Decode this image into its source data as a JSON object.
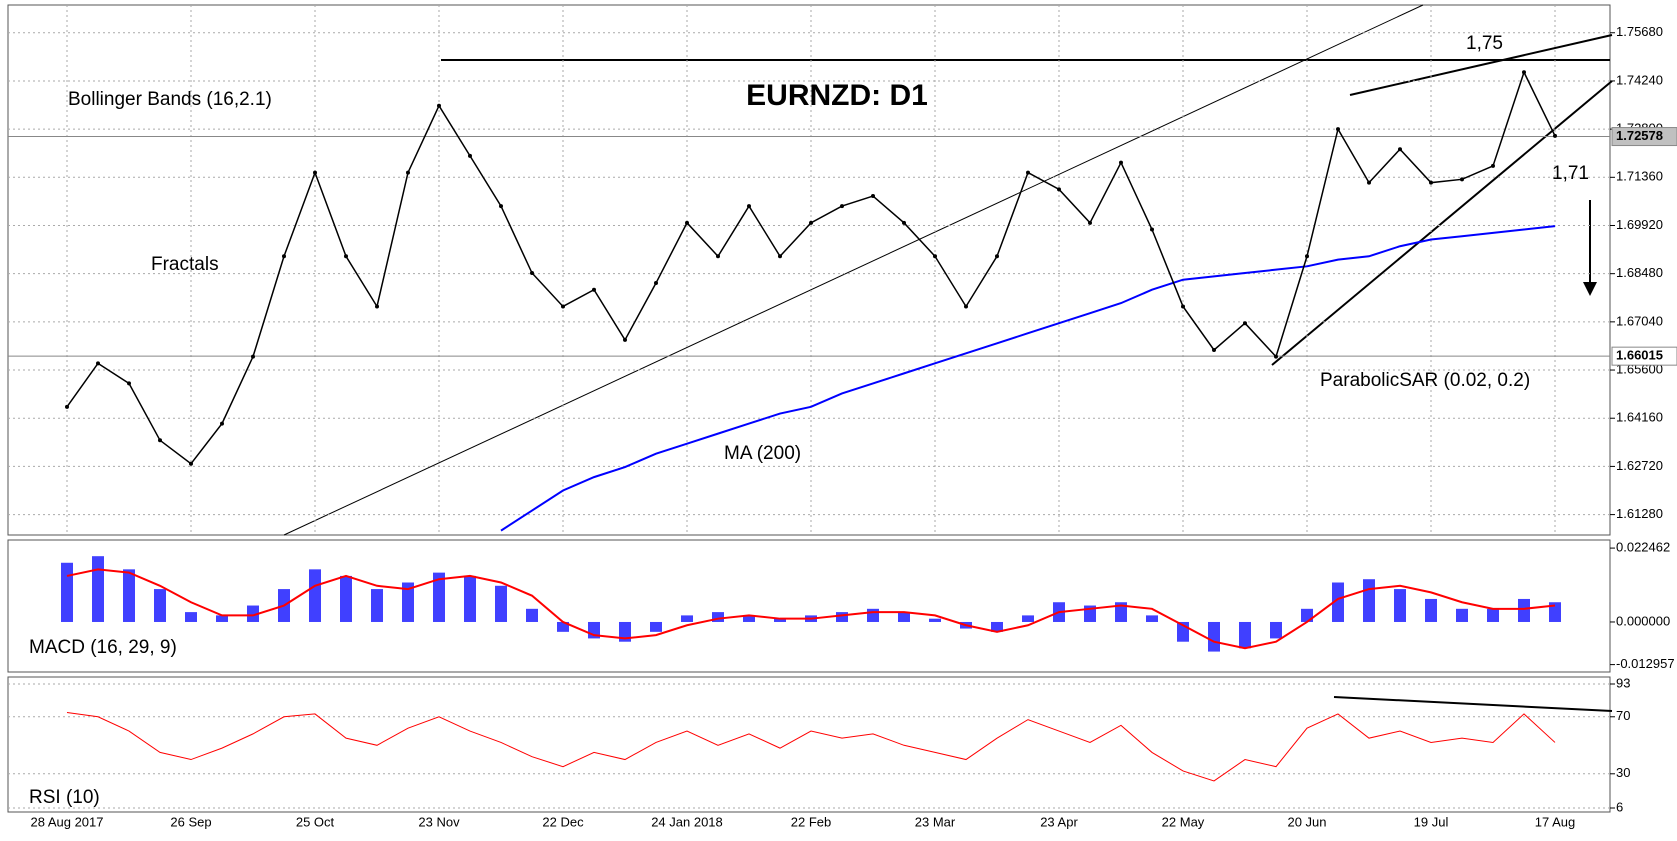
{
  "chart_data": [
    {
      "type": "line",
      "title": "EURNZD: D1",
      "annotations": [
        "Bollinger Bands (16,2.1)",
        "Fractals",
        "MA (200)",
        "ParabolicSAR (0.02, 0.2)",
        "1,75",
        "1,71"
      ],
      "categories": [
        "28 Aug 2017",
        null,
        null,
        null,
        "26 Sep",
        null,
        null,
        null,
        "25 Oct",
        null,
        null,
        null,
        "23 Nov",
        null,
        null,
        null,
        "22 Dec",
        null,
        null,
        null,
        "24 Jan 2018",
        null,
        null,
        null,
        "22 Feb",
        null,
        null,
        null,
        "23 Mar",
        null,
        null,
        null,
        "23 Apr",
        null,
        null,
        null,
        "22 May",
        null,
        null,
        null,
        "20 Jun",
        null,
        null,
        null,
        "19 Jul",
        null,
        null,
        null,
        "17 Aug"
      ],
      "values": [
        1.645,
        1.658,
        1.652,
        1.635,
        1.628,
        1.64,
        1.66,
        1.69,
        1.715,
        1.69,
        1.675,
        1.715,
        1.735,
        1.72,
        1.705,
        1.685,
        1.675,
        1.68,
        1.665,
        1.682,
        1.7,
        1.69,
        1.705,
        1.69,
        1.7,
        1.705,
        1.708,
        1.7,
        1.69,
        1.675,
        1.69,
        1.715,
        1.71,
        1.7,
        1.718,
        1.698,
        1.675,
        1.662,
        1.67,
        1.66,
        1.69,
        1.728,
        1.712,
        1.722,
        1.712,
        1.713,
        1.717,
        1.745,
        1.726
      ],
      "color": "#000000",
      "overlays": [
        {
          "name": "MA (200)",
          "color": "#0000ff",
          "values": [
            null,
            null,
            null,
            null,
            null,
            null,
            null,
            null,
            null,
            null,
            null,
            null,
            null,
            null,
            1.608,
            1.614,
            1.62,
            1.624,
            1.627,
            1.631,
            1.634,
            1.637,
            1.64,
            1.643,
            1.645,
            1.649,
            1.652,
            1.655,
            1.658,
            1.661,
            1.664,
            1.667,
            1.67,
            1.673,
            1.676,
            1.68,
            1.683,
            1.684,
            1.685,
            1.686,
            1.687,
            1.689,
            1.69,
            1.693,
            1.695,
            1.696,
            1.697,
            1.698,
            1.699
          ]
        }
      ],
      "price_lines": [
        1.72578,
        1.66015
      ],
      "ylim": [
        1.6067,
        1.7639
      ],
      "yticks": [
        {
          "value": 1.6128,
          "label": "1.61280"
        },
        {
          "value": 1.6272,
          "label": "1.62720"
        },
        {
          "value": 1.6416,
          "label": "1.64160"
        },
        {
          "value": 1.656,
          "label": "1.65600"
        },
        {
          "value": 1.6704,
          "label": "1.67040"
        },
        {
          "value": 1.6848,
          "label": "1.68480"
        },
        {
          "value": 1.6992,
          "label": "1.69920"
        },
        {
          "value": 1.7136,
          "label": "1.71360"
        },
        {
          "value": 1.728,
          "label": "1.72800"
        },
        {
          "value": 1.7424,
          "label": "1.74240"
        },
        {
          "value": 1.7568,
          "label": "1.75680"
        }
      ],
      "grid": true
    },
    {
      "type": "macd",
      "title": "MACD (16, 29, 9)",
      "values": [
        0.018,
        0.02,
        0.016,
        0.01,
        0.003,
        0.002,
        0.005,
        0.01,
        0.016,
        0.014,
        0.01,
        0.012,
        0.015,
        0.014,
        0.011,
        0.004,
        -0.003,
        -0.005,
        -0.006,
        -0.003,
        0.002,
        0.003,
        0.002,
        0.001,
        0.002,
        0.003,
        0.004,
        0.003,
        0.001,
        -0.002,
        -0.003,
        0.002,
        0.006,
        0.005,
        0.006,
        0.002,
        -0.006,
        -0.009,
        -0.008,
        -0.005,
        0.004,
        0.012,
        0.013,
        0.01,
        0.007,
        0.004,
        0.004,
        0.007,
        0.006
      ],
      "color": "#0000ff",
      "signal": {
        "color": "#ff0000",
        "values": [
          0.014,
          0.016,
          0.015,
          0.011,
          0.006,
          0.002,
          0.002,
          0.005,
          0.011,
          0.014,
          0.011,
          0.01,
          0.013,
          0.014,
          0.012,
          0.008,
          0.0,
          -0.004,
          -0.005,
          -0.004,
          -0.001,
          0.001,
          0.002,
          0.001,
          0.001,
          0.002,
          0.003,
          0.003,
          0.002,
          -0.001,
          -0.003,
          -0.001,
          0.003,
          0.004,
          0.005,
          0.004,
          -0.001,
          -0.006,
          -0.008,
          -0.006,
          0.0,
          0.007,
          0.01,
          0.011,
          0.009,
          0.006,
          0.004,
          0.004,
          0.005
        ]
      },
      "ylim": [
        -0.0146,
        0.0234
      ],
      "yticks": [
        0.022462,
        {
          "value": 0,
          "label": "0.000000"
        },
        -0.012957
      ],
      "grid": false
    },
    {
      "type": "rsi",
      "title": "RSI (10)",
      "values": [
        73,
        70,
        60,
        45,
        40,
        48,
        58,
        70,
        72,
        55,
        50,
        62,
        70,
        60,
        52,
        42,
        35,
        45,
        40,
        52,
        60,
        50,
        58,
        48,
        60,
        55,
        58,
        50,
        45,
        40,
        55,
        68,
        60,
        52,
        64,
        45,
        32,
        25,
        40,
        35,
        62,
        72,
        55,
        60,
        52,
        55,
        52,
        72,
        52
      ],
      "color": "#ff0000",
      "ylim": [
        6,
        93
      ],
      "yticks": [
        93,
        70,
        30,
        6
      ],
      "grid": true
    }
  ]
}
